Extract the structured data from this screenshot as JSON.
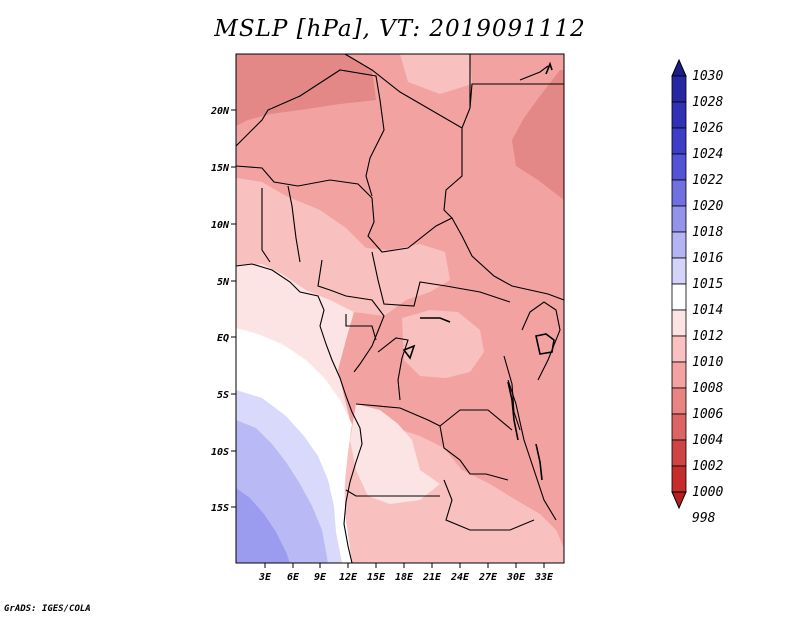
{
  "title": "MSLP [hPa], VT: 2019091112",
  "credit": "GrADS: IGES/COLA",
  "map": {
    "variable": "Mean sea level pressure",
    "units": "hPa",
    "valid_time": "2019091112",
    "x_ticks": [
      "3E",
      "6E",
      "9E",
      "12E",
      "15E",
      "18E",
      "21E",
      "24E",
      "27E",
      "30E",
      "33E"
    ],
    "y_ticks": [
      "20N",
      "15N",
      "10N",
      "5N",
      "EQ",
      "5S",
      "10S",
      "15S"
    ]
  },
  "colorbar": {
    "levels": [
      "1030",
      "1028",
      "1026",
      "1024",
      "1022",
      "1020",
      "1018",
      "1016",
      "1015",
      "1014",
      "1012",
      "1010",
      "1008",
      "1006",
      "1004",
      "1002",
      "1000",
      "998"
    ],
    "colors": [
      "#1c1c8c",
      "#2727a3",
      "#3131b5",
      "#3d3dc8",
      "#5353d6",
      "#7070e0",
      "#9393ec",
      "#b4b4f4",
      "#d4d4fa",
      "#ffffff",
      "#fde3e3",
      "#f9c1c1",
      "#f4a1a1",
      "#ea8484",
      "#dc6464",
      "#cf4444",
      "#c52c2c",
      "#b81e1e"
    ]
  },
  "fills": {
    "c_1016": "#b9b9f6",
    "c_1015": "#d9d9fb",
    "c_1014": "#ffffff",
    "c_1012": "#fde4e4",
    "c_1010": "#f9c0c0",
    "c_1008": "#f3a2a2",
    "c_1006": "#e38787"
  }
}
